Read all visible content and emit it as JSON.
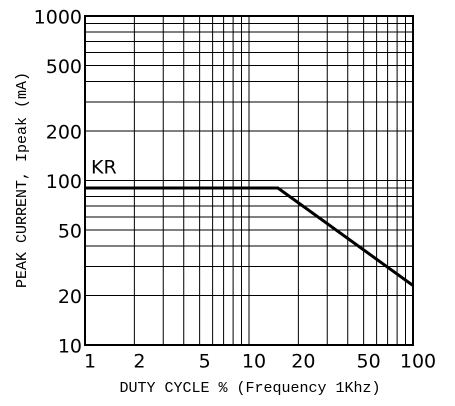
{
  "chart_data": {
    "type": "line",
    "xlabel": "DUTY CYCLE % (Frequency 1Khz)",
    "ylabel": "PEAK CURRENT, Ipeak (mA)",
    "annotation": "KR",
    "log_x": true,
    "log_y": true,
    "grid": true,
    "xlim": [
      1,
      100
    ],
    "ylim": [
      10,
      1000
    ],
    "xticks": [
      1,
      2,
      5,
      10,
      20,
      50,
      100
    ],
    "yticks": [
      10,
      20,
      50,
      100,
      200,
      500,
      1000
    ],
    "xminor": [
      3,
      4,
      6,
      7,
      8,
      9,
      30,
      40,
      60,
      70,
      80,
      90
    ],
    "yminor": [
      30,
      40,
      60,
      70,
      80,
      90,
      300,
      400,
      600,
      700,
      800,
      900
    ],
    "series": [
      {
        "name": "KR",
        "color": "#000000",
        "x": [
          1,
          15,
          100
        ],
        "values": [
          90,
          90,
          23
        ]
      }
    ]
  }
}
